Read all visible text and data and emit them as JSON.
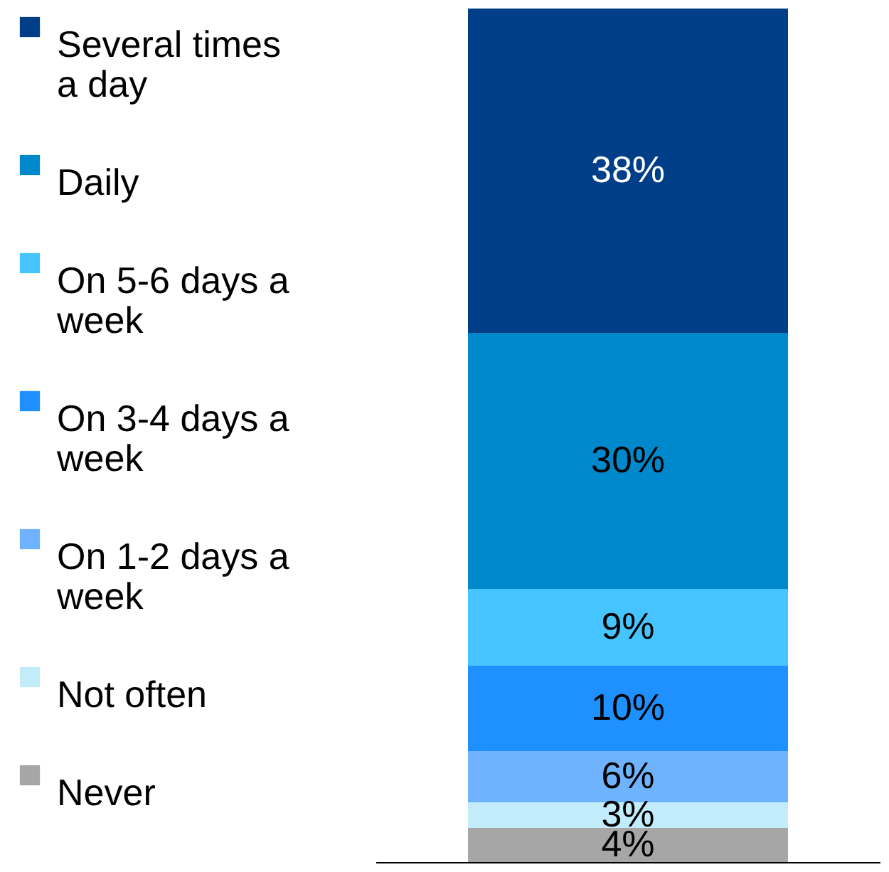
{
  "chart_data": {
    "type": "bar",
    "stacked": true,
    "categories": [
      null
    ],
    "legend": "left",
    "series": [
      {
        "name": "Never",
        "color": "#a6a6a6",
        "values": [
          4
        ],
        "value_labels": [
          "4%"
        ]
      },
      {
        "name": "Not often",
        "color": "#c3ecfb",
        "values": [
          3
        ],
        "value_labels": [
          "3%"
        ]
      },
      {
        "name": "On 1-2 days a week",
        "color": "#6fb3ff",
        "values": [
          6
        ],
        "value_labels": [
          "6%"
        ]
      },
      {
        "name": "On 3-4 days a week",
        "color": "#1e90ff",
        "values": [
          10
        ],
        "value_labels": [
          "10%"
        ]
      },
      {
        "name": "On 5-6 days a week",
        "color": "#46c4ff",
        "values": [
          9
        ],
        "value_labels": [
          "9%"
        ]
      },
      {
        "name": "Daily",
        "color": "#0088cc",
        "values": [
          30
        ],
        "value_labels": [
          "30%"
        ]
      },
      {
        "name": "Several times a day",
        "color": "#003f87",
        "values": [
          38
        ],
        "value_labels": [
          "38%"
        ]
      }
    ]
  }
}
